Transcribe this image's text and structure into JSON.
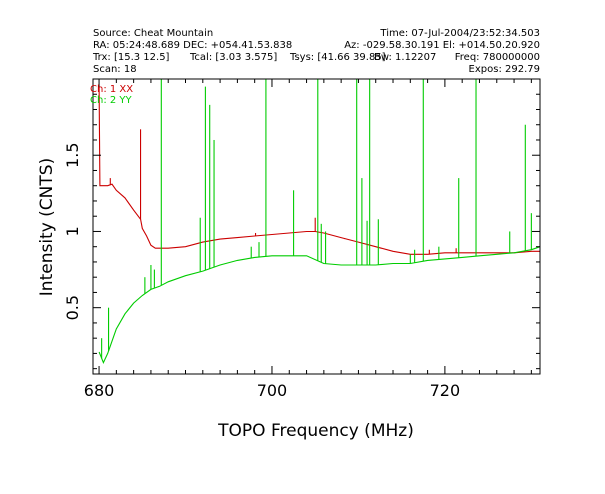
{
  "header": {
    "source": "Source: Cheat Mountain",
    "time": "Time: 07-Jul-2004/23:52:34.503",
    "ra_dec": "RA: 05:24:48.689 DEC: +054.41.53.838",
    "az_el": "Az: -029.58.30.191 El: +014.50.20.920",
    "trx": "Trx: [15.3 12.5]",
    "tcal": "Tcal: [3.03 3.575]",
    "tsys": "Tsys: [41.66 39.85]",
    "bw": "Bw: 1.12207",
    "freq": "Freq: 780000000",
    "scan": "Scan: 18",
    "expos": "Expos: 292.79"
  },
  "colors": {
    "ch1": "#cc0000",
    "ch2": "#00cc00",
    "frame": "#000000"
  },
  "chart_data": {
    "type": "line",
    "xlabel": "TOPO Frequency (MHz)",
    "ylabel": "Intensity (CNTS)",
    "xlim": [
      679.3,
      731
    ],
    "ylim": [
      0.065,
      2.0
    ],
    "x_ticks": [
      680,
      700,
      720
    ],
    "x_tick_labels": [
      "680",
      "700",
      "720"
    ],
    "y_ticks": [
      0.5,
      1,
      1.5
    ],
    "y_tick_labels": [
      "0.5",
      "1",
      "1.5"
    ],
    "legend_position": "top-left",
    "series": [
      {
        "name": "Ch: 1 XX",
        "color": "#cc0000",
        "points": [
          [
            680.0,
            1.95
          ],
          [
            680.1,
            1.3
          ],
          [
            681,
            1.3
          ],
          [
            681.5,
            1.31
          ],
          [
            682,
            1.27
          ],
          [
            683,
            1.22
          ],
          [
            684,
            1.14
          ],
          [
            684.8,
            1.08
          ],
          [
            685,
            1.02
          ],
          [
            685.5,
            0.97
          ],
          [
            686,
            0.91
          ],
          [
            686.5,
            0.89
          ],
          [
            688,
            0.89
          ],
          [
            690,
            0.9
          ],
          [
            692,
            0.93
          ],
          [
            694,
            0.95
          ],
          [
            696,
            0.96
          ],
          [
            698,
            0.97
          ],
          [
            700,
            0.98
          ],
          [
            702,
            0.99
          ],
          [
            704,
            1.0
          ],
          [
            705,
            1.0
          ],
          [
            706,
            0.99
          ],
          [
            708,
            0.96
          ],
          [
            710,
            0.93
          ],
          [
            712,
            0.9
          ],
          [
            714,
            0.87
          ],
          [
            716,
            0.85
          ],
          [
            718,
            0.85
          ],
          [
            720,
            0.86
          ],
          [
            722,
            0.86
          ],
          [
            724,
            0.86
          ],
          [
            726,
            0.86
          ],
          [
            728,
            0.86
          ],
          [
            730,
            0.87
          ],
          [
            731,
            0.87
          ]
        ],
        "spikes": [
          {
            "x": 681.3,
            "y": 1.35
          },
          {
            "x": 684.8,
            "y": 1.67
          },
          {
            "x": 698.1,
            "y": 0.99
          },
          {
            "x": 705.0,
            "y": 1.09
          },
          {
            "x": 708.4,
            "y": 0.95
          },
          {
            "x": 718.2,
            "y": 0.88
          },
          {
            "x": 721.3,
            "y": 0.89
          }
        ]
      },
      {
        "name": "Ch: 2 YY",
        "color": "#00cc00",
        "points": [
          [
            680.0,
            0.21
          ],
          [
            680.5,
            0.14
          ],
          [
            681.0,
            0.2
          ],
          [
            681.5,
            0.28
          ],
          [
            682,
            0.36
          ],
          [
            683,
            0.46
          ],
          [
            684,
            0.53
          ],
          [
            685,
            0.58
          ],
          [
            686,
            0.62
          ],
          [
            687,
            0.64
          ],
          [
            688,
            0.67
          ],
          [
            690,
            0.71
          ],
          [
            692,
            0.74
          ],
          [
            694,
            0.78
          ],
          [
            696,
            0.81
          ],
          [
            698,
            0.83
          ],
          [
            700,
            0.84
          ],
          [
            702,
            0.84
          ],
          [
            704,
            0.84
          ],
          [
            706,
            0.79
          ],
          [
            708,
            0.78
          ],
          [
            710,
            0.78
          ],
          [
            712,
            0.78
          ],
          [
            714,
            0.79
          ],
          [
            716,
            0.79
          ],
          [
            718,
            0.81
          ],
          [
            720,
            0.82
          ],
          [
            722,
            0.83
          ],
          [
            724,
            0.84
          ],
          [
            726,
            0.85
          ],
          [
            728,
            0.86
          ],
          [
            730,
            0.88
          ],
          [
            731,
            0.9
          ]
        ],
        "spikes": [
          {
            "x": 680.3,
            "y": 0.3
          },
          {
            "x": 681.1,
            "y": 0.5
          },
          {
            "x": 685.3,
            "y": 0.7
          },
          {
            "x": 686.0,
            "y": 0.78
          },
          {
            "x": 686.4,
            "y": 0.75
          },
          {
            "x": 687.2,
            "y": 2.0
          },
          {
            "x": 691.7,
            "y": 1.09
          },
          {
            "x": 692.3,
            "y": 1.95
          },
          {
            "x": 692.8,
            "y": 1.83
          },
          {
            "x": 693.3,
            "y": 1.6
          },
          {
            "x": 697.6,
            "y": 0.9
          },
          {
            "x": 698.5,
            "y": 0.93
          },
          {
            "x": 699.3,
            "y": 2.0
          },
          {
            "x": 702.5,
            "y": 1.27
          },
          {
            "x": 705.3,
            "y": 2.0
          },
          {
            "x": 705.7,
            "y": 1.05
          },
          {
            "x": 706.2,
            "y": 1.0
          },
          {
            "x": 709.8,
            "y": 2.0
          },
          {
            "x": 710.4,
            "y": 1.35
          },
          {
            "x": 711.0,
            "y": 1.07
          },
          {
            "x": 711.3,
            "y": 2.0
          },
          {
            "x": 712.3,
            "y": 1.08
          },
          {
            "x": 716.0,
            "y": 0.85
          },
          {
            "x": 716.5,
            "y": 0.88
          },
          {
            "x": 717.5,
            "y": 2.0
          },
          {
            "x": 719.3,
            "y": 0.9
          },
          {
            "x": 721.6,
            "y": 1.35
          },
          {
            "x": 723.6,
            "y": 2.0
          },
          {
            "x": 727.5,
            "y": 1.0
          },
          {
            "x": 729.3,
            "y": 1.7
          },
          {
            "x": 730.0,
            "y": 1.12
          }
        ]
      }
    ]
  }
}
